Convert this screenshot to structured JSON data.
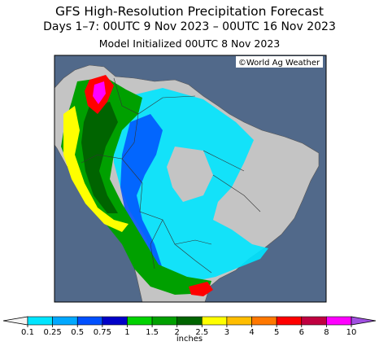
{
  "header": {
    "title": "GFS High-Resolution Precipitation Forecast",
    "subtitle": "Days 1–7: 00UTC 9 Nov 2023 – 00UTC 16 Nov 2023",
    "init": "Model Initialized 00UTC 8 Nov 2023"
  },
  "map": {
    "credit": "©World Ag Weather"
  },
  "legend": {
    "ticks": [
      0.1,
      0.25,
      0.5,
      0.75,
      1,
      1.5,
      2,
      2.5,
      3,
      4,
      5,
      6,
      8,
      10
    ],
    "colors": [
      "#f4f4f4",
      "#00e5ff",
      "#00a8ff",
      "#0050ff",
      "#0000c8",
      "#00d200",
      "#00a000",
      "#006400",
      "#ffff00",
      "#ffbe00",
      "#ff7800",
      "#ff0000",
      "#c00040",
      "#ff00ff",
      "#a050e0"
    ],
    "unit": "inches"
  }
}
